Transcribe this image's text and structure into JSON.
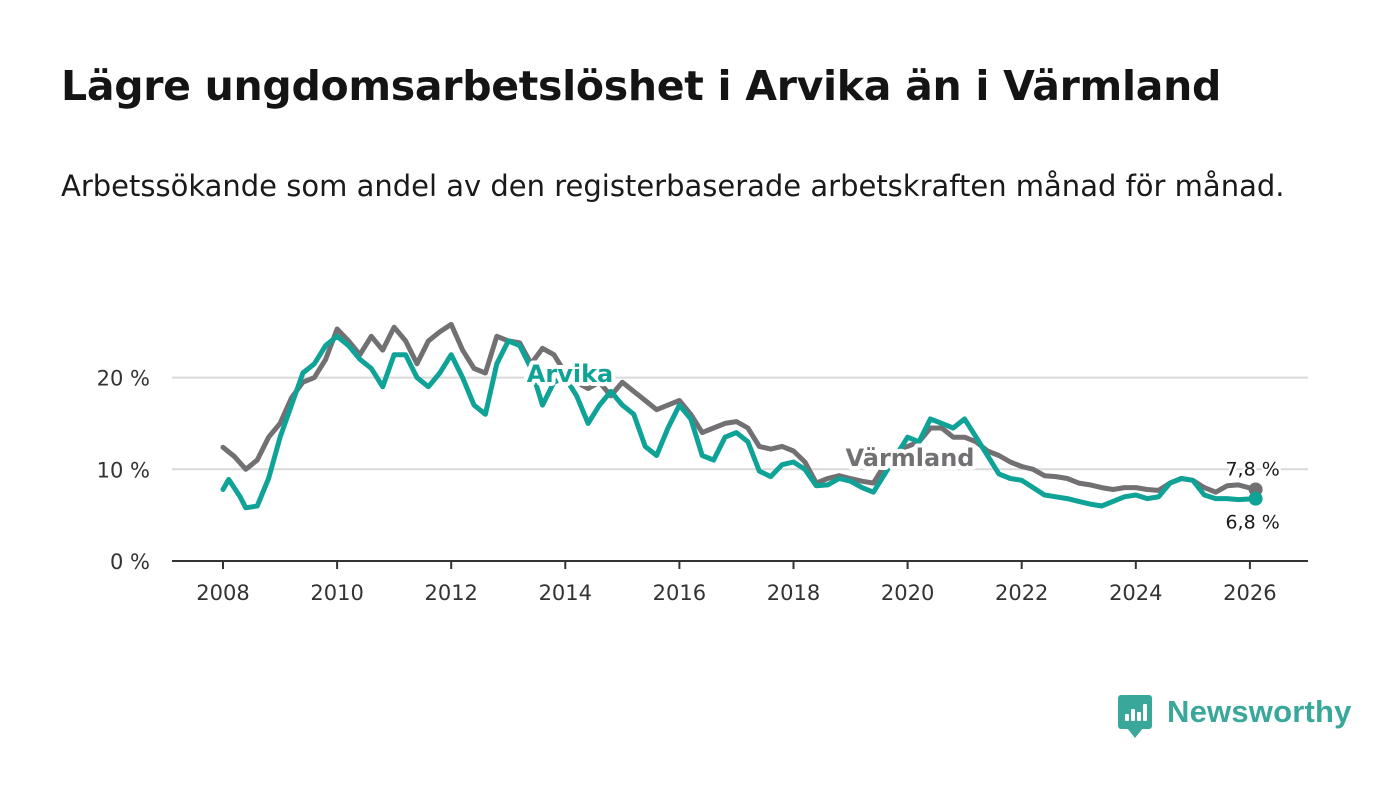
{
  "title": "Lägre ungdomsarbetslöshet i Arvika än i Värmland",
  "subtitle": "Arbetssökande som andel av den registerbaserade arbetskraften månad för månad.",
  "brand": {
    "name": "Newsworthy",
    "color": "#3aa79b"
  },
  "chart_data": {
    "type": "line",
    "title": "Lägre ungdomsarbetslöshet i Arvika än i Värmland",
    "subtitle": "Arbetssökande som andel av den registerbaserade arbetskraften månad för månad.",
    "xlabel": "",
    "ylabel": "",
    "xlim": [
      2007.5,
      2027.0
    ],
    "ylim": [
      0,
      25
    ],
    "x_ticks": [
      2008,
      2010,
      2012,
      2014,
      2016,
      2018,
      2020,
      2022,
      2024,
      2026
    ],
    "x_tick_labels": [
      "2008",
      "2010",
      "2012",
      "2014",
      "2016",
      "2018",
      "2020",
      "2022",
      "2024",
      "2026"
    ],
    "y_ticks": [
      0,
      10,
      20
    ],
    "y_tick_labels": [
      "0 %",
      "10 %",
      "20 %"
    ],
    "grid": true,
    "series": [
      {
        "name": "Värmland",
        "color": "#727073",
        "end_label": "7,8 %",
        "points": [
          [
            2008.0,
            12.4
          ],
          [
            2008.2,
            11.4
          ],
          [
            2008.4,
            10.0
          ],
          [
            2008.6,
            11.0
          ],
          [
            2008.8,
            13.5
          ],
          [
            2009.0,
            15.0
          ],
          [
            2009.2,
            17.8
          ],
          [
            2009.4,
            19.5
          ],
          [
            2009.6,
            20.0
          ],
          [
            2009.8,
            22.0
          ],
          [
            2010.0,
            25.3
          ],
          [
            2010.2,
            24.0
          ],
          [
            2010.4,
            22.5
          ],
          [
            2010.6,
            24.5
          ],
          [
            2010.8,
            23.0
          ],
          [
            2011.0,
            25.5
          ],
          [
            2011.2,
            24.0
          ],
          [
            2011.4,
            21.5
          ],
          [
            2011.6,
            24.0
          ],
          [
            2011.8,
            25.0
          ],
          [
            2012.0,
            25.8
          ],
          [
            2012.2,
            23.0
          ],
          [
            2012.4,
            21.0
          ],
          [
            2012.6,
            20.5
          ],
          [
            2012.8,
            24.5
          ],
          [
            2013.0,
            24.0
          ],
          [
            2013.2,
            23.8
          ],
          [
            2013.4,
            21.5
          ],
          [
            2013.6,
            23.2
          ],
          [
            2013.8,
            22.5
          ],
          [
            2014.0,
            20.5
          ],
          [
            2014.2,
            19.5
          ],
          [
            2014.4,
            18.8
          ],
          [
            2014.6,
            19.5
          ],
          [
            2014.8,
            18.0
          ],
          [
            2015.0,
            19.5
          ],
          [
            2015.2,
            18.5
          ],
          [
            2015.4,
            17.5
          ],
          [
            2015.6,
            16.5
          ],
          [
            2015.8,
            17.0
          ],
          [
            2016.0,
            17.5
          ],
          [
            2016.2,
            16.0
          ],
          [
            2016.4,
            14.0
          ],
          [
            2016.6,
            14.5
          ],
          [
            2016.8,
            15.0
          ],
          [
            2017.0,
            15.2
          ],
          [
            2017.2,
            14.5
          ],
          [
            2017.4,
            12.5
          ],
          [
            2017.6,
            12.2
          ],
          [
            2017.8,
            12.5
          ],
          [
            2018.0,
            12.0
          ],
          [
            2018.2,
            10.8
          ],
          [
            2018.4,
            8.5
          ],
          [
            2018.6,
            9.0
          ],
          [
            2018.8,
            9.3
          ],
          [
            2019.0,
            9.0
          ],
          [
            2019.2,
            8.7
          ],
          [
            2019.4,
            8.5
          ],
          [
            2019.6,
            10.5
          ],
          [
            2019.8,
            11.5
          ],
          [
            2020.0,
            12.5
          ],
          [
            2020.2,
            13.0
          ],
          [
            2020.4,
            14.5
          ],
          [
            2020.6,
            14.5
          ],
          [
            2020.8,
            13.5
          ],
          [
            2021.0,
            13.5
          ],
          [
            2021.2,
            13.0
          ],
          [
            2021.4,
            12.0
          ],
          [
            2021.6,
            11.5
          ],
          [
            2021.8,
            10.8
          ],
          [
            2022.0,
            10.3
          ],
          [
            2022.2,
            10.0
          ],
          [
            2022.4,
            9.3
          ],
          [
            2022.6,
            9.2
          ],
          [
            2022.8,
            9.0
          ],
          [
            2023.0,
            8.5
          ],
          [
            2023.2,
            8.3
          ],
          [
            2023.4,
            8.0
          ],
          [
            2023.6,
            7.8
          ],
          [
            2023.8,
            8.0
          ],
          [
            2024.0,
            8.0
          ],
          [
            2024.2,
            7.8
          ],
          [
            2024.4,
            7.7
          ],
          [
            2024.6,
            8.5
          ],
          [
            2024.8,
            9.0
          ],
          [
            2025.0,
            8.8
          ],
          [
            2025.2,
            8.0
          ],
          [
            2025.4,
            7.5
          ],
          [
            2025.6,
            8.2
          ],
          [
            2025.8,
            8.3
          ],
          [
            2026.1,
            7.8
          ]
        ]
      },
      {
        "name": "Arvika",
        "color": "#0fa398",
        "end_label": "6,8 %",
        "points": [
          [
            2008.0,
            7.8
          ],
          [
            2008.1,
            8.9
          ],
          [
            2008.3,
            7.0
          ],
          [
            2008.4,
            5.8
          ],
          [
            2008.6,
            6.0
          ],
          [
            2008.8,
            9.0
          ],
          [
            2009.0,
            13.5
          ],
          [
            2009.2,
            17.0
          ],
          [
            2009.4,
            20.5
          ],
          [
            2009.6,
            21.5
          ],
          [
            2009.8,
            23.5
          ],
          [
            2010.0,
            24.5
          ],
          [
            2010.2,
            23.5
          ],
          [
            2010.4,
            22.0
          ],
          [
            2010.6,
            21.0
          ],
          [
            2010.8,
            19.0
          ],
          [
            2011.0,
            22.5
          ],
          [
            2011.2,
            22.5
          ],
          [
            2011.4,
            20.0
          ],
          [
            2011.6,
            19.0
          ],
          [
            2011.8,
            20.5
          ],
          [
            2012.0,
            22.5
          ],
          [
            2012.2,
            20.0
          ],
          [
            2012.4,
            17.0
          ],
          [
            2012.6,
            16.0
          ],
          [
            2012.8,
            21.5
          ],
          [
            2013.0,
            24.0
          ],
          [
            2013.2,
            23.5
          ],
          [
            2013.4,
            21.0
          ],
          [
            2013.6,
            17.0
          ],
          [
            2013.8,
            19.5
          ],
          [
            2014.0,
            20.0
          ],
          [
            2014.2,
            18.0
          ],
          [
            2014.4,
            15.0
          ],
          [
            2014.6,
            17.0
          ],
          [
            2014.8,
            18.5
          ],
          [
            2015.0,
            17.0
          ],
          [
            2015.2,
            16.0
          ],
          [
            2015.4,
            12.5
          ],
          [
            2015.6,
            11.5
          ],
          [
            2015.8,
            14.5
          ],
          [
            2016.0,
            17.0
          ],
          [
            2016.2,
            15.5
          ],
          [
            2016.4,
            11.5
          ],
          [
            2016.6,
            11.0
          ],
          [
            2016.8,
            13.5
          ],
          [
            2017.0,
            14.0
          ],
          [
            2017.2,
            13.0
          ],
          [
            2017.4,
            9.8
          ],
          [
            2017.6,
            9.2
          ],
          [
            2017.8,
            10.5
          ],
          [
            2018.0,
            10.8
          ],
          [
            2018.2,
            10.0
          ],
          [
            2018.4,
            8.2
          ],
          [
            2018.6,
            8.3
          ],
          [
            2018.8,
            9.0
          ],
          [
            2019.0,
            8.7
          ],
          [
            2019.2,
            8.0
          ],
          [
            2019.4,
            7.5
          ],
          [
            2019.6,
            9.5
          ],
          [
            2019.8,
            11.5
          ],
          [
            2020.0,
            13.5
          ],
          [
            2020.2,
            13.0
          ],
          [
            2020.4,
            15.5
          ],
          [
            2020.6,
            15.0
          ],
          [
            2020.8,
            14.5
          ],
          [
            2021.0,
            15.5
          ],
          [
            2021.2,
            13.5
          ],
          [
            2021.4,
            11.5
          ],
          [
            2021.6,
            9.5
          ],
          [
            2021.8,
            9.0
          ],
          [
            2022.0,
            8.8
          ],
          [
            2022.2,
            8.0
          ],
          [
            2022.4,
            7.2
          ],
          [
            2022.6,
            7.0
          ],
          [
            2022.8,
            6.8
          ],
          [
            2023.0,
            6.5
          ],
          [
            2023.2,
            6.2
          ],
          [
            2023.4,
            6.0
          ],
          [
            2023.6,
            6.5
          ],
          [
            2023.8,
            7.0
          ],
          [
            2024.0,
            7.2
          ],
          [
            2024.2,
            6.8
          ],
          [
            2024.4,
            7.0
          ],
          [
            2024.6,
            8.5
          ],
          [
            2024.8,
            9.0
          ],
          [
            2025.0,
            8.8
          ],
          [
            2025.2,
            7.2
          ],
          [
            2025.4,
            6.8
          ],
          [
            2025.6,
            6.8
          ],
          [
            2025.8,
            6.7
          ],
          [
            2026.1,
            6.8
          ]
        ]
      }
    ]
  }
}
